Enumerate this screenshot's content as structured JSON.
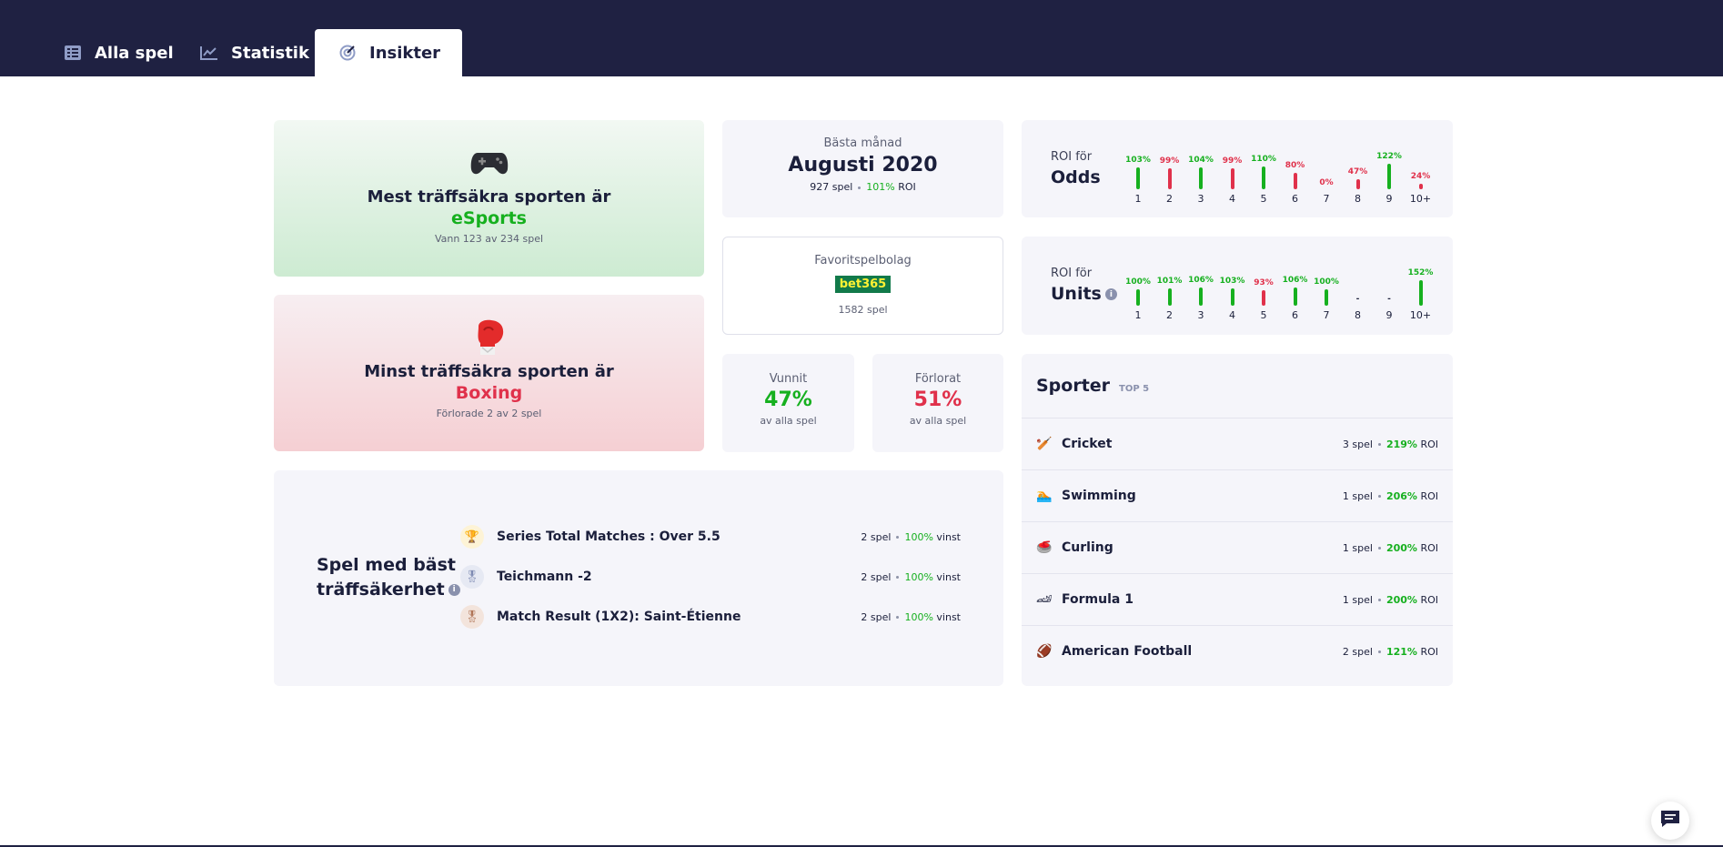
{
  "tabs": [
    {
      "label": "Alla spel"
    },
    {
      "label": "Statistik"
    },
    {
      "label": "Insikter"
    }
  ],
  "most_accurate": {
    "title": "Mest träffsäkra sporten är",
    "sport": "eSports",
    "subtitle": "Vann 123 av 234 spel"
  },
  "least_accurate": {
    "title": "Minst träffsäkra sporten är",
    "sport": "Boxing",
    "subtitle": "Förlorade 2 av 2 spel"
  },
  "best_month": {
    "label": "Bästa månad",
    "month": "Augusti 2020",
    "games": "927 spel",
    "roi_value": "101%",
    "roi_label": "ROI"
  },
  "favorite_bookmaker": {
    "label": "Favoritspelbolag",
    "logo_text": "bet365",
    "games": "1582 spel"
  },
  "won": {
    "label": "Vunnit",
    "value": "47%",
    "sub": "av alla spel"
  },
  "lost": {
    "label": "Förlorat",
    "value": "51%",
    "sub": "av alla spel"
  },
  "roi_odds": {
    "title_small": "ROI för",
    "title_big": "Odds",
    "chart_data": {
      "type": "bar",
      "categories": [
        "1",
        "2",
        "3",
        "4",
        "5",
        "6",
        "7",
        "8",
        "9",
        "10+"
      ],
      "values": [
        103,
        99,
        104,
        99,
        110,
        80,
        0,
        47,
        122,
        24
      ],
      "labels": [
        "103%",
        "99%",
        "104%",
        "99%",
        "110%",
        "80%",
        "0%",
        "47%",
        "122%",
        "24%"
      ]
    }
  },
  "roi_units": {
    "title_small": "ROI för",
    "title_big": "Units",
    "chart_data": {
      "type": "bar",
      "categories": [
        "1",
        "2",
        "3",
        "4",
        "5",
        "6",
        "7",
        "8",
        "9",
        "10+"
      ],
      "values": [
        100,
        101,
        106,
        103,
        93,
        106,
        100,
        null,
        null,
        152
      ],
      "labels": [
        "100%",
        "101%",
        "106%",
        "103%",
        "93%",
        "106%",
        "100%",
        "-",
        "-",
        "152%"
      ]
    }
  },
  "sports": {
    "title": "Sporter",
    "badge": "TOP 5",
    "items": [
      {
        "name": "Cricket",
        "games": "3 spel",
        "roi": "219%",
        "roi_label": "ROI",
        "icon": "cricket-bat-icon",
        "glyph": "🏏"
      },
      {
        "name": "Swimming",
        "games": "1 spel",
        "roi": "206%",
        "roi_label": "ROI",
        "icon": "swimmer-icon",
        "glyph": "🏊"
      },
      {
        "name": "Curling",
        "games": "1 spel",
        "roi": "200%",
        "roi_label": "ROI",
        "icon": "curling-stone-icon",
        "glyph": "🥌"
      },
      {
        "name": "Formula 1",
        "games": "1 spel",
        "roi": "200%",
        "roi_label": "ROI",
        "icon": "race-car-icon",
        "glyph": "🏎"
      },
      {
        "name": "American Football",
        "games": "2 spel",
        "roi": "121%",
        "roi_label": "ROI",
        "icon": "football-icon",
        "glyph": "🏈"
      }
    ]
  },
  "best_bets": {
    "title_line1": "Spel med bäst",
    "title_line2": "träffsäkerhet",
    "items": [
      {
        "name": "Series Total Matches : Over 5.5",
        "games": "2 spel",
        "pct": "100%",
        "pct_label": "vinst",
        "medal": "trophy-icon"
      },
      {
        "name": "Teichmann -2",
        "games": "2 spel",
        "pct": "100%",
        "pct_label": "vinst",
        "medal": "silver-medal-icon"
      },
      {
        "name": "Match Result (1X2): Saint-Étienne",
        "games": "2 spel",
        "pct": "100%",
        "pct_label": "vinst",
        "medal": "bronze-medal-icon"
      }
    ]
  },
  "colors": {
    "navy": "#1f2142",
    "green": "#16b01f",
    "red": "#e0314b"
  }
}
